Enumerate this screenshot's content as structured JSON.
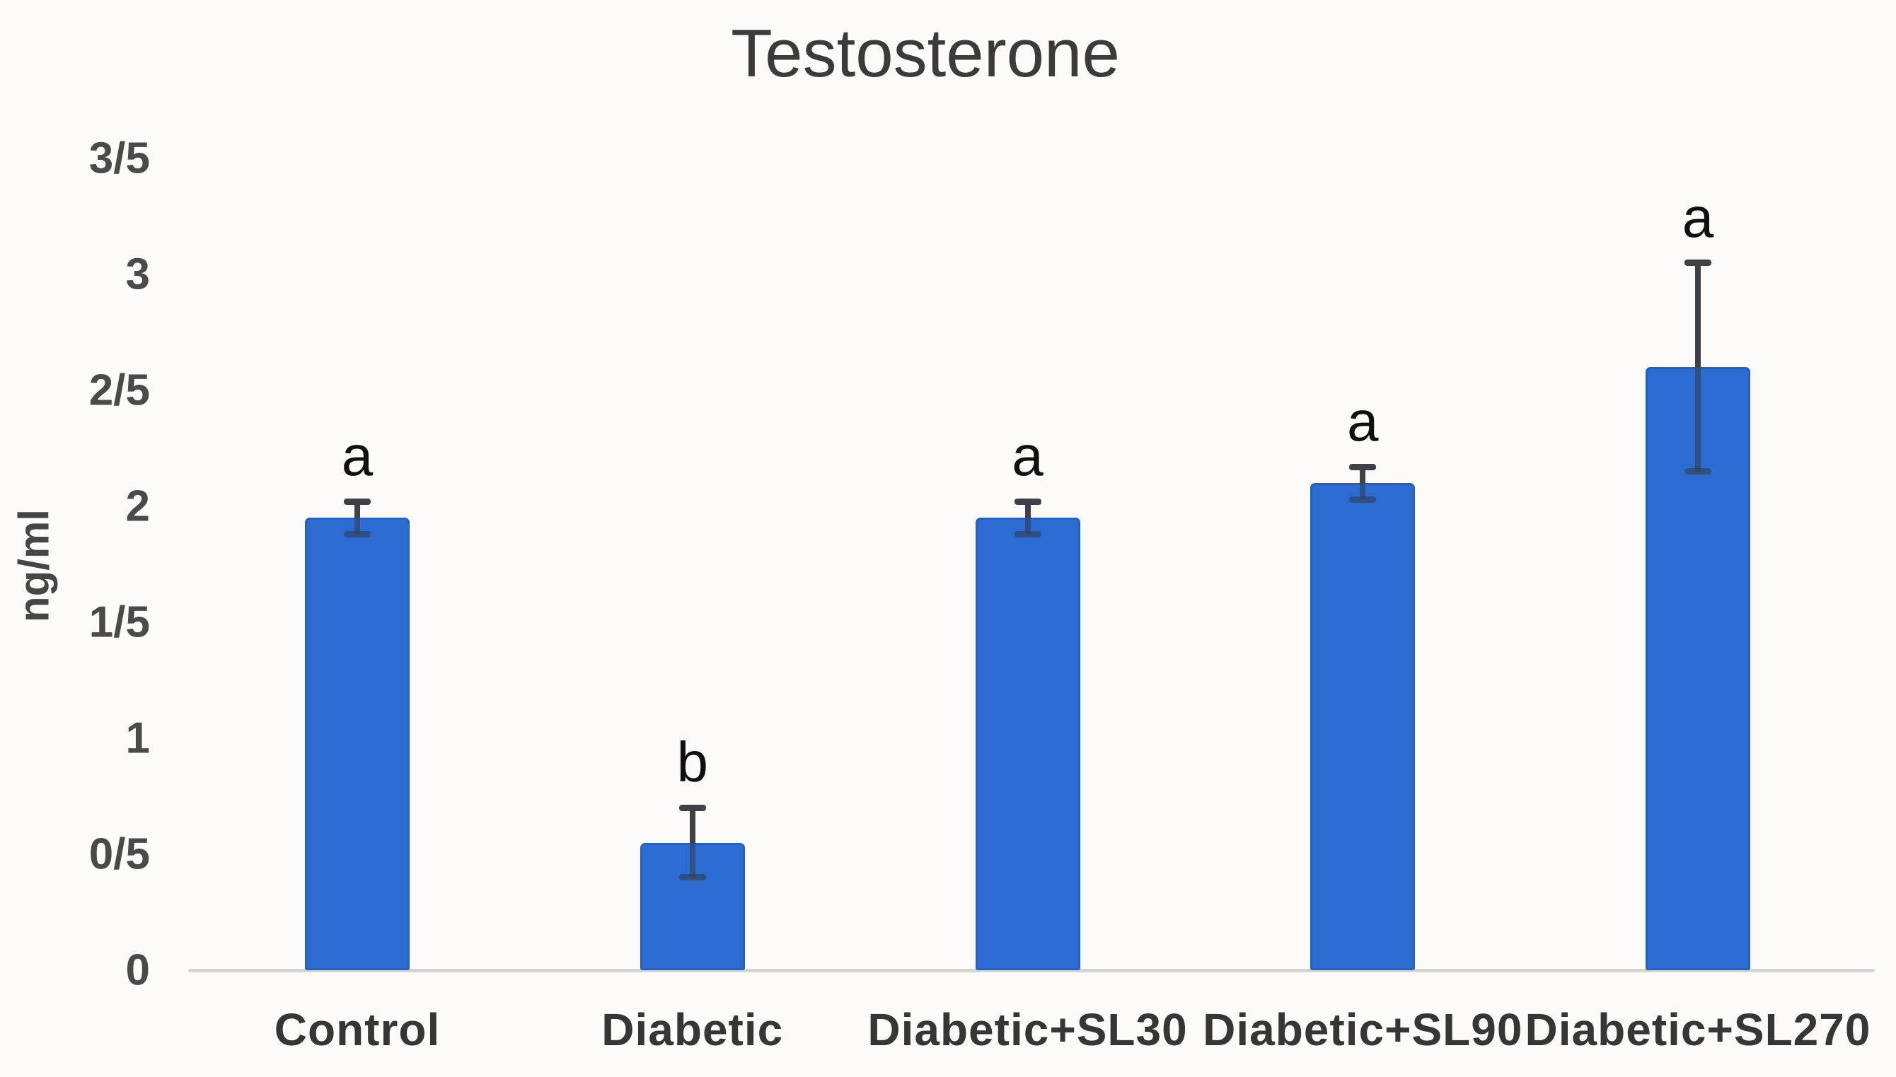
{
  "chart_data": {
    "type": "bar",
    "title": "Testosterone",
    "xlabel": "",
    "ylabel": "ng/ml",
    "ylim": [
      0,
      3.5
    ],
    "grid": false,
    "legend": false,
    "ytick_values": [
      0,
      0.5,
      1,
      1.5,
      2,
      2.5,
      3,
      3.5
    ],
    "ytick_labels": [
      "0",
      "0/5",
      "1",
      "1/5",
      "2",
      "2/5",
      "3",
      "3/5"
    ],
    "categories": [
      "Control",
      "Diabetic",
      "Diabetic+SL30",
      "Diabetic+SL90",
      "Diabetic+SL270"
    ],
    "values": [
      1.95,
      0.55,
      1.95,
      2.1,
      2.6
    ],
    "error_bars": [
      0.07,
      0.15,
      0.07,
      0.07,
      0.45
    ],
    "sig_letters": [
      "a",
      "b",
      "a",
      "a",
      "a"
    ],
    "bar_color": "#2B6BD2",
    "error_color": "#3E4247",
    "error_color_inside_bar": "rgba(52,58,66,0.55)",
    "axis_line_color": "#D8D5D1",
    "title_color": "#3B3B3B",
    "tick_label_color": "#4A4A4A",
    "category_label_color": "#363636",
    "letter_color": "#101010",
    "background_color": "#FCFBF9"
  }
}
